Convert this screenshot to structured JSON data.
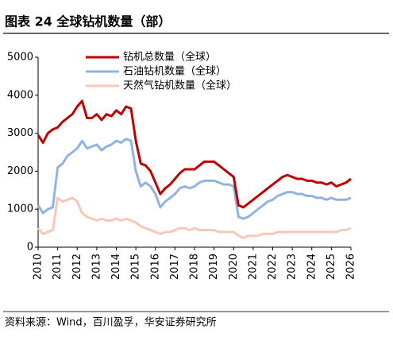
{
  "title": "图表 24 全球钻机数量（部）",
  "source": "资料来源：Wind，百川盈孚，华安证券研究所",
  "chart_data": {
    "type": "line",
    "x": [
      2010,
      2010.25,
      2010.5,
      2010.75,
      2011,
      2011.25,
      2011.5,
      2011.75,
      2012,
      2012.25,
      2012.5,
      2012.75,
      2013,
      2013.25,
      2013.5,
      2013.75,
      2014,
      2014.25,
      2014.5,
      2014.75,
      2015,
      2015.25,
      2015.5,
      2015.75,
      2016,
      2016.25,
      2016.5,
      2016.75,
      2017,
      2017.25,
      2017.5,
      2017.75,
      2018,
      2018.25,
      2018.5,
      2018.75,
      2019,
      2019.25,
      2019.5,
      2019.75,
      2020,
      2020.25,
      2020.5,
      2020.75,
      2021,
      2021.25,
      2021.5,
      2021.75,
      2022,
      2022.25,
      2022.5,
      2022.75,
      2023,
      2023.25,
      2023.5,
      2023.75,
      2024,
      2024.25,
      2024.5,
      2024.75,
      2025,
      2025.25,
      2025.5,
      2025.75,
      2026
    ],
    "series": [
      {
        "name": "钻机总数量（全球）",
        "color": "#c00000",
        "values": [
          2950,
          2750,
          3000,
          3100,
          3150,
          3300,
          3400,
          3500,
          3700,
          3850,
          3400,
          3400,
          3500,
          3350,
          3500,
          3450,
          3600,
          3500,
          3700,
          3650,
          2800,
          2200,
          2150,
          2000,
          1700,
          1400,
          1550,
          1650,
          1800,
          1950,
          2050,
          2050,
          2050,
          2150,
          2250,
          2250,
          2250,
          2150,
          2050,
          1950,
          1850,
          1100,
          1050,
          1150,
          1250,
          1350,
          1450,
          1550,
          1650,
          1750,
          1850,
          1900,
          1850,
          1800,
          1800,
          1750,
          1750,
          1700,
          1700,
          1650,
          1700,
          1600,
          1650,
          1700,
          1800
        ]
      },
      {
        "name": "石油钻机数量（全球）",
        "color": "#8fb4e3",
        "values": [
          1100,
          900,
          1000,
          1050,
          2100,
          2200,
          2400,
          2500,
          2600,
          2800,
          2600,
          2650,
          2700,
          2550,
          2650,
          2700,
          2800,
          2750,
          2850,
          2800,
          2000,
          1600,
          1700,
          1600,
          1400,
          1050,
          1200,
          1300,
          1400,
          1550,
          1600,
          1550,
          1600,
          1700,
          1750,
          1750,
          1750,
          1700,
          1650,
          1650,
          1600,
          800,
          750,
          800,
          900,
          1000,
          1100,
          1200,
          1250,
          1350,
          1400,
          1450,
          1450,
          1400,
          1400,
          1350,
          1350,
          1300,
          1300,
          1250,
          1300,
          1250,
          1250,
          1250,
          1300
        ]
      },
      {
        "name": "天然气钻机数量（全球）",
        "color": "#f5c9b5",
        "values": [
          500,
          350,
          400,
          450,
          1300,
          1200,
          1250,
          1300,
          1200,
          900,
          800,
          750,
          700,
          750,
          700,
          700,
          750,
          700,
          750,
          700,
          650,
          550,
          500,
          450,
          400,
          350,
          400,
          400,
          450,
          500,
          500,
          450,
          500,
          450,
          450,
          450,
          450,
          400,
          400,
          400,
          400,
          300,
          250,
          300,
          300,
          300,
          350,
          350,
          350,
          400,
          400,
          400,
          400,
          400,
          400,
          400,
          400,
          400,
          400,
          400,
          400,
          400,
          450,
          450,
          500
        ]
      }
    ],
    "xlim": [
      2010,
      2026
    ],
    "xticks": [
      2010,
      2011,
      2012,
      2013,
      2014,
      2015,
      2016,
      2017,
      2018,
      2019,
      2020,
      2021,
      2022,
      2023,
      2024,
      2025,
      2026
    ],
    "ylim": [
      0,
      5000
    ],
    "yticks": [
      0,
      1000,
      2000,
      3000,
      4000,
      5000
    ]
  }
}
